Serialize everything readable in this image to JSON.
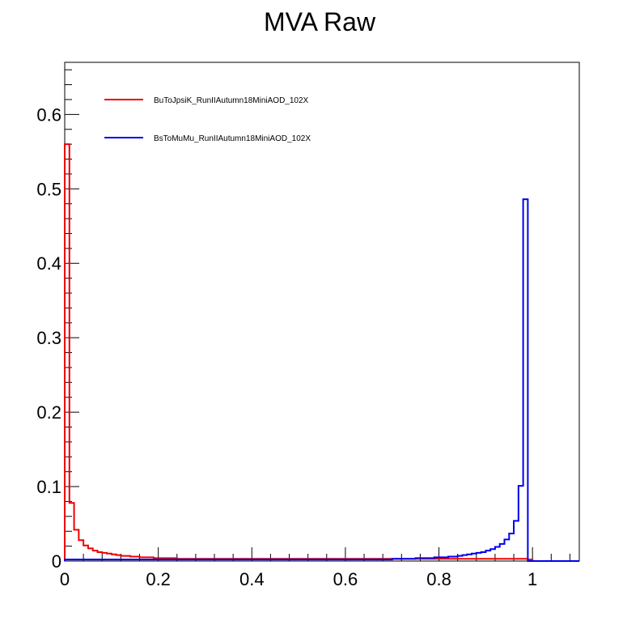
{
  "chart_data": {
    "type": "line",
    "title": "MVA Raw",
    "xlabel": "",
    "ylabel": "",
    "xlim": [
      0,
      1.1
    ],
    "ylim": [
      0,
      0.67
    ],
    "bin_width": 0.01,
    "grid": false,
    "legend_position": "top-left",
    "xticks": [
      {
        "value": 0,
        "label": "0"
      },
      {
        "value": 0.2,
        "label": "0.2"
      },
      {
        "value": 0.4,
        "label": "0.4"
      },
      {
        "value": 0.6,
        "label": "0.6"
      },
      {
        "value": 0.8,
        "label": "0.8"
      },
      {
        "value": 1,
        "label": "1"
      }
    ],
    "yticks": [
      {
        "value": 0,
        "label": "0"
      },
      {
        "value": 0.1,
        "label": "0.1"
      },
      {
        "value": 0.2,
        "label": "0.2"
      },
      {
        "value": 0.3,
        "label": "0.3"
      },
      {
        "value": 0.4,
        "label": "0.4"
      },
      {
        "value": 0.5,
        "label": "0.5"
      },
      {
        "value": 0.6,
        "label": "0.6"
      }
    ],
    "series": [
      {
        "name": "BuToJpsiK_RunIIAutumn18MiniAOD_102X",
        "color": "#ee0000",
        "x_start": 0,
        "values": [
          0.56,
          0.078,
          0.042,
          0.028,
          0.021,
          0.017,
          0.014,
          0.012,
          0.011,
          0.01,
          0.009,
          0.008,
          0.007,
          0.007,
          0.006,
          0.006,
          0.005,
          0.005,
          0.005,
          0.004,
          0.004,
          0.004,
          0.004,
          0.004,
          0.003,
          0.003,
          0.003,
          0.003,
          0.003,
          0.003,
          0.003,
          0.003,
          0.003,
          0.003,
          0.003,
          0.003,
          0.003,
          0.003,
          0.003,
          0.003,
          0.003,
          0.003,
          0.003,
          0.003,
          0.003,
          0.003,
          0.003,
          0.003,
          0.003,
          0.003,
          0.003,
          0.003,
          0.003,
          0.003,
          0.003,
          0.003,
          0.003,
          0.003,
          0.003,
          0.003,
          0.003,
          0.003,
          0.003,
          0.003,
          0.003,
          0.003,
          0.003,
          0.003,
          0.003,
          0.003,
          0.003,
          0.003,
          0.003,
          0.003,
          0.003,
          0.003,
          0.003,
          0.003,
          0.003,
          0.003,
          0.003,
          0.003,
          0.003,
          0.003,
          0.003,
          0.003,
          0.003,
          0.003,
          0.003,
          0.003,
          0.003,
          0.003,
          0.003,
          0.003,
          0.003,
          0.003,
          0.003,
          0.003,
          0.003,
          0.002
        ]
      },
      {
        "name": "BsToMuMu_RunIIAutumn18MiniAOD_102X",
        "color": "#0000ee",
        "x_start": 0,
        "values": [
          0.002,
          0.002,
          0.002,
          0.002,
          0.002,
          0.002,
          0.002,
          0.002,
          0.002,
          0.002,
          0.002,
          0.002,
          0.002,
          0.002,
          0.002,
          0.002,
          0.002,
          0.002,
          0.002,
          0.002,
          0.002,
          0.002,
          0.002,
          0.002,
          0.002,
          0.002,
          0.002,
          0.002,
          0.002,
          0.002,
          0.002,
          0.002,
          0.002,
          0.002,
          0.002,
          0.002,
          0.002,
          0.002,
          0.002,
          0.002,
          0.002,
          0.002,
          0.002,
          0.002,
          0.002,
          0.002,
          0.002,
          0.002,
          0.002,
          0.002,
          0.002,
          0.002,
          0.002,
          0.002,
          0.002,
          0.002,
          0.002,
          0.002,
          0.002,
          0.002,
          0.002,
          0.002,
          0.002,
          0.002,
          0.002,
          0.002,
          0.002,
          0.002,
          0.002,
          0.002,
          0.003,
          0.003,
          0.003,
          0.003,
          0.003,
          0.004,
          0.004,
          0.004,
          0.004,
          0.005,
          0.005,
          0.005,
          0.006,
          0.006,
          0.007,
          0.008,
          0.009,
          0.01,
          0.011,
          0.012,
          0.014,
          0.016,
          0.019,
          0.023,
          0.029,
          0.037,
          0.054,
          0.101,
          0.486,
          0.0
        ]
      }
    ]
  }
}
